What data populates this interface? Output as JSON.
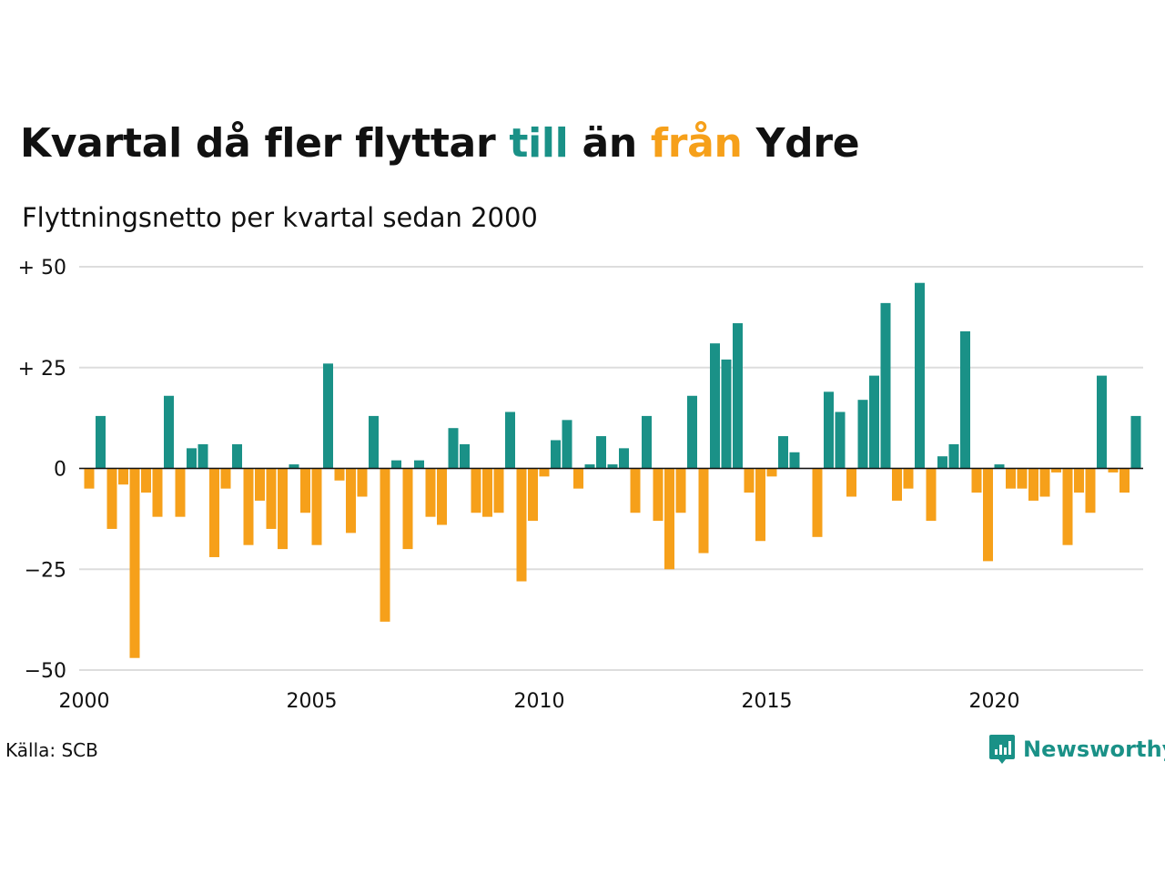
{
  "title": {
    "part1": "Kvartal då fler flyttar ",
    "pos_word": "till",
    "part2": " än ",
    "neg_word": "från",
    "part3": " Ydre"
  },
  "subtitle": "Flyttningsnetto per kvartal sedan 2000",
  "source": "Källa: SCB",
  "brand": {
    "name": "Newsworthy",
    "icon": "newsworthy-logo-icon"
  },
  "colors": {
    "positive": "#1a9187",
    "negative": "#f6a01a",
    "grid": "#dddddd",
    "axis": "#111111"
  },
  "chart_data": {
    "type": "bar",
    "xlabel": "",
    "ylabel": "",
    "ylim": [
      -50,
      50
    ],
    "yticks": [
      50,
      25,
      0,
      -25,
      -50
    ],
    "ytick_labels": [
      "+ 50",
      "+ 25",
      "0",
      "−25",
      "−50"
    ],
    "xticks": [
      "2000",
      "2005",
      "2010",
      "2015",
      "2020"
    ],
    "grid": true,
    "start": "2000 Q1",
    "values": [
      -5,
      13,
      -15,
      -4,
      -47,
      -6,
      -12,
      18,
      -12,
      5,
      6,
      -22,
      -5,
      6,
      -19,
      -8,
      -15,
      -20,
      1,
      -11,
      -19,
      26,
      -3,
      -16,
      -7,
      13,
      -38,
      2,
      -20,
      2,
      -12,
      -14,
      10,
      6,
      -11,
      -12,
      -11,
      14,
      -28,
      -13,
      -2,
      7,
      12,
      -5,
      1,
      8,
      1,
      5,
      -11,
      13,
      -13,
      -25,
      -11,
      18,
      -21,
      31,
      27,
      36,
      -6,
      -18,
      -2,
      8,
      4,
      0,
      -17,
      19,
      14,
      -7,
      17,
      23,
      41,
      -8,
      -5,
      46,
      -13,
      3,
      6,
      34,
      -6,
      -23,
      1,
      -5,
      -5,
      -8,
      -7,
      -1,
      -19,
      -6,
      -11,
      23,
      -1,
      -6,
      13
    ]
  }
}
